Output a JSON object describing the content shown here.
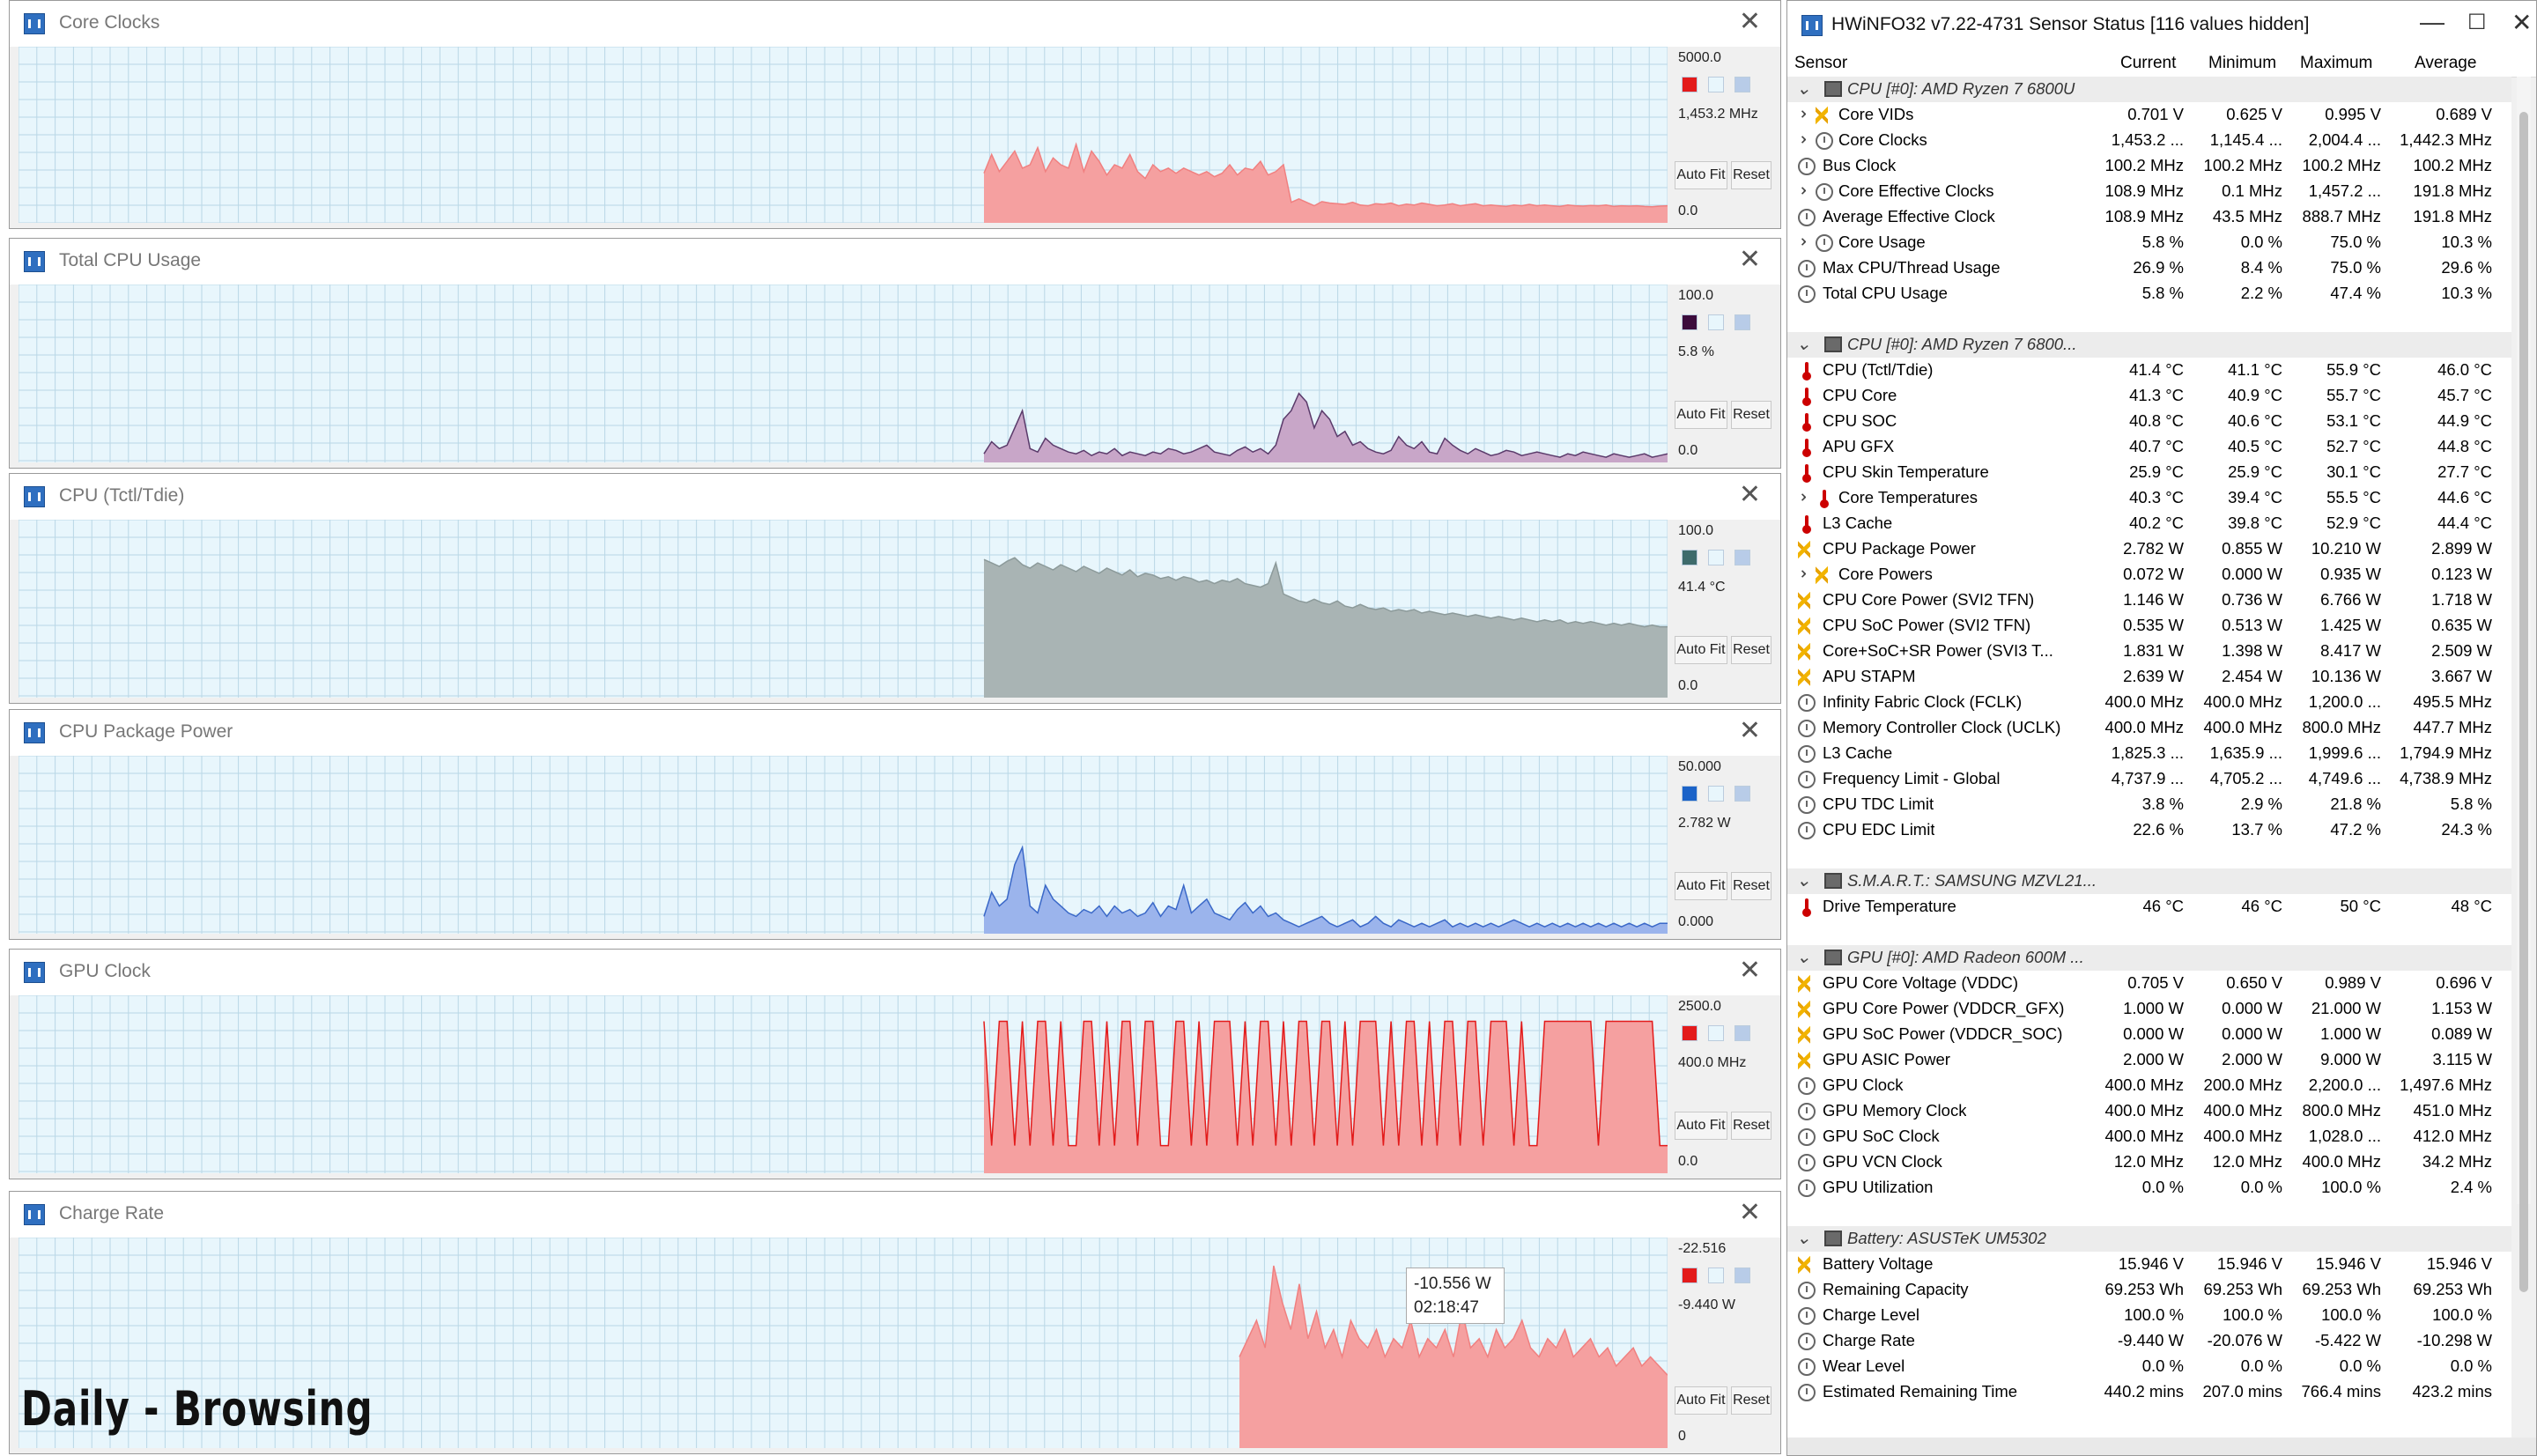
{
  "graphs": [
    {
      "title": "Core Clocks",
      "max": "5000.0",
      "current": "1,453.2 MHz",
      "min": "0.0",
      "color": "#f08080",
      "fill": "#f5a0a0",
      "swatch": "#e31b1b",
      "series_max": 5000,
      "samples": [
        1453,
        2000,
        1500,
        1800,
        2100,
        1600,
        1700,
        2200,
        1500,
        1900,
        1700,
        1600,
        2300,
        1500,
        2100,
        1800,
        1400,
        1700,
        1600,
        2000,
        1500,
        1300,
        1700,
        1500,
        1600,
        1450,
        1600,
        1500,
        1400,
        1500,
        1350,
        1450,
        1700,
        1400,
        1600,
        1550,
        1800,
        1400,
        1500,
        1700,
        600,
        700,
        600,
        500,
        620,
        580,
        560,
        540,
        600,
        520,
        500,
        560,
        540,
        580,
        500,
        550,
        520,
        580,
        540,
        500,
        520,
        560,
        500,
        530,
        560,
        500,
        520,
        500,
        480,
        520,
        500,
        540,
        500,
        520,
        500,
        480,
        520,
        500,
        490,
        510,
        500,
        520,
        480,
        500,
        490,
        500,
        480,
        470,
        490,
        500
      ]
    },
    {
      "title": "Total CPU Usage",
      "max": "100.0",
      "current": "5.8 %",
      "min": "0.0",
      "color": "#5a3a6a",
      "fill": "#c8a6c8",
      "swatch": "#3c0c3c",
      "series_max": 100,
      "samples": [
        5,
        12,
        8,
        10,
        20,
        30,
        8,
        6,
        14,
        10,
        8,
        6,
        5,
        7,
        4,
        6,
        5,
        8,
        4,
        6,
        5,
        4,
        6,
        5,
        8,
        7,
        5,
        6,
        8,
        10,
        6,
        5,
        4,
        7,
        9,
        6,
        8,
        5,
        10,
        25,
        30,
        40,
        35,
        20,
        30,
        25,
        15,
        18,
        10,
        12,
        8,
        6,
        5,
        7,
        15,
        10,
        8,
        12,
        6,
        5,
        14,
        10,
        7,
        5,
        8,
        6,
        4,
        5,
        7,
        6,
        4,
        5,
        6,
        5,
        4,
        3,
        5,
        4,
        6,
        5,
        4,
        3,
        5,
        4,
        3,
        4,
        5,
        3,
        4,
        5
      ]
    },
    {
      "title": "CPU (Tctl/Tdie)",
      "max": "100.0",
      "current": "41.4 °C",
      "min": "0.0",
      "color": "#8c9a9a",
      "fill": "#a9b4b4",
      "swatch": "#3e6b6b",
      "series_max": 100,
      "samples": [
        80,
        78,
        76,
        79,
        81,
        77,
        75,
        78,
        76,
        74,
        77,
        75,
        73,
        76,
        74,
        72,
        75,
        73,
        71,
        74,
        70,
        72,
        71,
        69,
        70,
        68,
        70,
        69,
        67,
        68,
        66,
        68,
        67,
        69,
        66,
        65,
        64,
        66,
        78,
        60,
        58,
        56,
        55,
        57,
        55,
        54,
        56,
        53,
        52,
        54,
        52,
        51,
        52,
        50,
        51,
        50,
        51,
        49,
        50,
        49,
        48,
        49,
        48,
        47,
        48,
        47,
        46,
        47,
        46,
        45,
        46,
        45,
        44,
        45,
        44,
        45,
        43,
        44,
        43,
        44,
        43,
        42,
        43,
        42,
        43,
        42,
        41,
        42,
        41,
        41
      ]
    },
    {
      "title": "CPU Package Power",
      "max": "50.000",
      "current": "2.782 W",
      "min": "0.000",
      "color": "#3a68c8",
      "fill": "#9bb4ec",
      "swatch": "#1b63c8",
      "series_max": 50,
      "samples": [
        5,
        12,
        8,
        10,
        20,
        25,
        8,
        6,
        14,
        10,
        8,
        6,
        5,
        7,
        6,
        8,
        5,
        8,
        6,
        7,
        5,
        6,
        9,
        5,
        8,
        7,
        14,
        6,
        8,
        10,
        6,
        5,
        4,
        7,
        9,
        6,
        8,
        5,
        6,
        4,
        3,
        2,
        3,
        4,
        5,
        3,
        2,
        3,
        4,
        2,
        3,
        5,
        3,
        2,
        4,
        3,
        2,
        3,
        2,
        3,
        4,
        2,
        3,
        2,
        3,
        2,
        3,
        2,
        3,
        4,
        3,
        2,
        3,
        2,
        3,
        2,
        3,
        2,
        3,
        2,
        3,
        2,
        3,
        2,
        3,
        2,
        3,
        2,
        3,
        3
      ]
    },
    {
      "title": "GPU Clock",
      "max": "2500.0",
      "current": "400.0 MHz",
      "min": "0.0",
      "color": "#e31b1b",
      "fill": "#f5a0a0",
      "swatch": "#e31b1b",
      "series_max": 2500,
      "samples": [
        2200,
        400,
        2200,
        2200,
        400,
        2200,
        400,
        2200,
        2200,
        400,
        2200,
        400,
        400,
        2200,
        2200,
        400,
        2200,
        400,
        2200,
        2200,
        400,
        2200,
        2200,
        400,
        400,
        2200,
        2200,
        400,
        2200,
        400,
        2200,
        2200,
        2200,
        400,
        2200,
        400,
        2200,
        2200,
        400,
        2200,
        400,
        2200,
        2200,
        400,
        2200,
        2200,
        400,
        2200,
        400,
        2200,
        2200,
        2200,
        400,
        2200,
        400,
        2200,
        2200,
        400,
        2200,
        400,
        2200,
        2200,
        400,
        2200,
        2200,
        400,
        2200,
        2200,
        2200,
        400,
        2200,
        400,
        400,
        2200,
        2200,
        2200,
        2200,
        2200,
        2200,
        2200,
        400,
        2200,
        2200,
        2200,
        2200,
        2200,
        2200,
        2200,
        400,
        400
      ]
    },
    {
      "title": "Charge Rate",
      "max": "-22.516",
      "current": "-9.440 W",
      "min": "0",
      "color": "#f08080",
      "fill": "#f5a0a0",
      "swatch": "#e31b1b",
      "series_max": 22.516,
      "samples": [
        10,
        12,
        14,
        11,
        20,
        16,
        13,
        18,
        12,
        15,
        11,
        13,
        10,
        14,
        12,
        11,
        13,
        10,
        12,
        11,
        14,
        10,
        12,
        11,
        13,
        10,
        15,
        11,
        12,
        10,
        13,
        11,
        12,
        14,
        11,
        10,
        12,
        11,
        13,
        10,
        11,
        12,
        10,
        11,
        9,
        10,
        11,
        9,
        10,
        9,
        8
      ]
    }
  ],
  "graph_buttons": {
    "autofit": "Auto Fit",
    "reset": "Reset"
  },
  "tooltip": {
    "value": "-10.556 W",
    "time": "02:18:47"
  },
  "caption": "Daily - Browsing",
  "sensor": {
    "title": "HWiNFO32 v7.22-4731 Sensor Status [116 values hidden]",
    "columns": {
      "sensor": "Sensor",
      "current": "Current",
      "minimum": "Minimum",
      "maximum": "Maximum",
      "average": "Average"
    },
    "rows": [
      {
        "type": "group",
        "label": "CPU [#0]: AMD Ryzen 7 6800U",
        "icon": "chip"
      },
      {
        "label": "Core VIDs",
        "icon": "bolt",
        "indent": 2,
        "expand": true,
        "cur": "0.701 V",
        "min": "0.625 V",
        "max": "0.995 V",
        "avg": "0.689 V"
      },
      {
        "label": "Core Clocks",
        "icon": "clock",
        "indent": 2,
        "expand": true,
        "cur": "1,453.2 ...",
        "min": "1,145.4 ...",
        "max": "2,004.4 ...",
        "avg": "1,442.3 MHz"
      },
      {
        "label": "Bus Clock",
        "icon": "clock",
        "indent": 1,
        "cur": "100.2 MHz",
        "min": "100.2 MHz",
        "max": "100.2 MHz",
        "avg": "100.2 MHz"
      },
      {
        "label": "Core Effective Clocks",
        "icon": "clock",
        "indent": 2,
        "expand": true,
        "cur": "108.9 MHz",
        "min": "0.1 MHz",
        "max": "1,457.2 ...",
        "avg": "191.8 MHz"
      },
      {
        "label": "Average Effective Clock",
        "icon": "clock",
        "indent": 1,
        "cur": "108.9 MHz",
        "min": "43.5 MHz",
        "max": "888.7 MHz",
        "avg": "191.8 MHz"
      },
      {
        "label": "Core Usage",
        "icon": "clock",
        "indent": 2,
        "expand": true,
        "cur": "5.8 %",
        "min": "0.0 %",
        "max": "75.0 %",
        "avg": "10.3 %"
      },
      {
        "label": "Max CPU/Thread Usage",
        "icon": "clock",
        "indent": 1,
        "cur": "26.9 %",
        "min": "8.4 %",
        "max": "75.0 %",
        "avg": "29.6 %"
      },
      {
        "label": "Total CPU Usage",
        "icon": "clock",
        "indent": 1,
        "cur": "5.8 %",
        "min": "2.2 %",
        "max": "47.4 %",
        "avg": "10.3 %"
      },
      {
        "type": "blank"
      },
      {
        "type": "group",
        "label": "CPU [#0]: AMD Ryzen 7 6800...",
        "icon": "chip"
      },
      {
        "label": "CPU (Tctl/Tdie)",
        "icon": "temp",
        "indent": 1,
        "cur": "41.4 °C",
        "min": "41.1 °C",
        "max": "55.9 °C",
        "avg": "46.0 °C"
      },
      {
        "label": "CPU Core",
        "icon": "temp",
        "indent": 1,
        "cur": "41.3 °C",
        "min": "40.9 °C",
        "max": "55.7 °C",
        "avg": "45.7 °C"
      },
      {
        "label": "CPU SOC",
        "icon": "temp",
        "indent": 1,
        "cur": "40.8 °C",
        "min": "40.6 °C",
        "max": "53.1 °C",
        "avg": "44.9 °C"
      },
      {
        "label": "APU GFX",
        "icon": "temp",
        "indent": 1,
        "cur": "40.7 °C",
        "min": "40.5 °C",
        "max": "52.7 °C",
        "avg": "44.8 °C"
      },
      {
        "label": "CPU Skin Temperature",
        "icon": "temp",
        "indent": 1,
        "cur": "25.9 °C",
        "min": "25.9 °C",
        "max": "30.1 °C",
        "avg": "27.7 °C"
      },
      {
        "label": "Core Temperatures",
        "icon": "temp",
        "indent": 2,
        "expand": true,
        "cur": "40.3 °C",
        "min": "39.4 °C",
        "max": "55.5 °C",
        "avg": "44.6 °C"
      },
      {
        "label": "L3 Cache",
        "icon": "temp",
        "indent": 1,
        "cur": "40.2 °C",
        "min": "39.8 °C",
        "max": "52.9 °C",
        "avg": "44.4 °C"
      },
      {
        "label": "CPU Package Power",
        "icon": "bolt",
        "indent": 1,
        "cur": "2.782 W",
        "min": "0.855 W",
        "max": "10.210 W",
        "avg": "2.899 W"
      },
      {
        "label": "Core Powers",
        "icon": "bolt",
        "indent": 2,
        "expand": true,
        "cur": "0.072 W",
        "min": "0.000 W",
        "max": "0.935 W",
        "avg": "0.123 W"
      },
      {
        "label": "CPU Core Power (SVI2 TFN)",
        "icon": "bolt",
        "indent": 1,
        "cur": "1.146 W",
        "min": "0.736 W",
        "max": "6.766 W",
        "avg": "1.718 W"
      },
      {
        "label": "CPU SoC Power (SVI2 TFN)",
        "icon": "bolt",
        "indent": 1,
        "cur": "0.535 W",
        "min": "0.513 W",
        "max": "1.425 W",
        "avg": "0.635 W"
      },
      {
        "label": "Core+SoC+SR Power (SVI3 T...",
        "icon": "bolt",
        "indent": 1,
        "cur": "1.831 W",
        "min": "1.398 W",
        "max": "8.417 W",
        "avg": "2.509 W"
      },
      {
        "label": "APU STAPM",
        "icon": "bolt",
        "indent": 1,
        "cur": "2.639 W",
        "min": "2.454 W",
        "max": "10.136 W",
        "avg": "3.667 W"
      },
      {
        "label": "Infinity Fabric Clock (FCLK)",
        "icon": "clock",
        "indent": 1,
        "cur": "400.0 MHz",
        "min": "400.0 MHz",
        "max": "1,200.0 ...",
        "avg": "495.5 MHz"
      },
      {
        "label": "Memory Controller Clock (UCLK)",
        "icon": "clock",
        "indent": 1,
        "cur": "400.0 MHz",
        "min": "400.0 MHz",
        "max": "800.0 MHz",
        "avg": "447.7 MHz"
      },
      {
        "label": "L3 Cache",
        "icon": "clock",
        "indent": 1,
        "cur": "1,825.3 ...",
        "min": "1,635.9 ...",
        "max": "1,999.6 ...",
        "avg": "1,794.9 MHz"
      },
      {
        "label": "Frequency Limit - Global",
        "icon": "clock",
        "indent": 1,
        "cur": "4,737.9 ...",
        "min": "4,705.2 ...",
        "max": "4,749.6 ...",
        "avg": "4,738.9 MHz"
      },
      {
        "label": "CPU TDC Limit",
        "icon": "clock",
        "indent": 1,
        "cur": "3.8 %",
        "min": "2.9 %",
        "max": "21.8 %",
        "avg": "5.8 %"
      },
      {
        "label": "CPU EDC Limit",
        "icon": "clock",
        "indent": 1,
        "cur": "22.6 %",
        "min": "13.7 %",
        "max": "47.2 %",
        "avg": "24.3 %"
      },
      {
        "type": "blank"
      },
      {
        "type": "group",
        "label": "S.M.A.R.T.: SAMSUNG MZVL21...",
        "icon": "chip"
      },
      {
        "label": "Drive Temperature",
        "icon": "temp",
        "indent": 1,
        "cur": "46 °C",
        "min": "46 °C",
        "max": "50 °C",
        "avg": "48 °C"
      },
      {
        "type": "blank"
      },
      {
        "type": "group",
        "label": "GPU [#0]: AMD Radeon 600M ...",
        "icon": "chip"
      },
      {
        "label": "GPU Core Voltage (VDDC)",
        "icon": "bolt",
        "indent": 1,
        "cur": "0.705 V",
        "min": "0.650 V",
        "max": "0.989 V",
        "avg": "0.696 V"
      },
      {
        "label": "GPU Core Power (VDDCR_GFX)",
        "icon": "bolt",
        "indent": 1,
        "cur": "1.000 W",
        "min": "0.000 W",
        "max": "21.000 W",
        "avg": "1.153 W"
      },
      {
        "label": "GPU SoC Power (VDDCR_SOC)",
        "icon": "bolt",
        "indent": 1,
        "cur": "0.000 W",
        "min": "0.000 W",
        "max": "1.000 W",
        "avg": "0.089 W"
      },
      {
        "label": "GPU ASIC Power",
        "icon": "bolt",
        "indent": 1,
        "cur": "2.000 W",
        "min": "2.000 W",
        "max": "9.000 W",
        "avg": "3.115 W"
      },
      {
        "label": "GPU Clock",
        "icon": "clock",
        "indent": 1,
        "cur": "400.0 MHz",
        "min": "200.0 MHz",
        "max": "2,200.0 ...",
        "avg": "1,497.6 MHz"
      },
      {
        "label": "GPU Memory Clock",
        "icon": "clock",
        "indent": 1,
        "cur": "400.0 MHz",
        "min": "400.0 MHz",
        "max": "800.0 MHz",
        "avg": "451.0 MHz"
      },
      {
        "label": "GPU SoC Clock",
        "icon": "clock",
        "indent": 1,
        "cur": "400.0 MHz",
        "min": "400.0 MHz",
        "max": "1,028.0 ...",
        "avg": "412.0 MHz"
      },
      {
        "label": "GPU VCN Clock",
        "icon": "clock",
        "indent": 1,
        "cur": "12.0 MHz",
        "min": "12.0 MHz",
        "max": "400.0 MHz",
        "avg": "34.2 MHz"
      },
      {
        "label": "GPU Utilization",
        "icon": "clock",
        "indent": 1,
        "cur": "0.0 %",
        "min": "0.0 %",
        "max": "100.0 %",
        "avg": "2.4 %"
      },
      {
        "type": "blank"
      },
      {
        "type": "group",
        "label": "Battery: ASUSTeK UM5302",
        "icon": "chip"
      },
      {
        "label": "Battery Voltage",
        "icon": "bolt",
        "indent": 1,
        "cur": "15.946 V",
        "min": "15.946 V",
        "max": "15.946 V",
        "avg": "15.946 V"
      },
      {
        "label": "Remaining Capacity",
        "icon": "clock",
        "indent": 1,
        "cur": "69.253 Wh",
        "min": "69.253 Wh",
        "max": "69.253 Wh",
        "avg": "69.253 Wh"
      },
      {
        "label": "Charge Level",
        "icon": "clock",
        "indent": 1,
        "cur": "100.0 %",
        "min": "100.0 %",
        "max": "100.0 %",
        "avg": "100.0 %"
      },
      {
        "label": "Charge Rate",
        "icon": "clock",
        "indent": 1,
        "cur": "-9.440 W",
        "min": "-20.076 W",
        "max": "-5.422 W",
        "avg": "-10.298 W"
      },
      {
        "label": "Wear Level",
        "icon": "clock",
        "indent": 1,
        "cur": "0.0 %",
        "min": "0.0 %",
        "max": "0.0 %",
        "avg": "0.0 %"
      },
      {
        "label": "Estimated Remaining Time",
        "icon": "clock",
        "indent": 1,
        "cur": "440.2 mins",
        "min": "207.0 mins",
        "max": "766.4 mins",
        "avg": "423.2 mins"
      }
    ]
  }
}
